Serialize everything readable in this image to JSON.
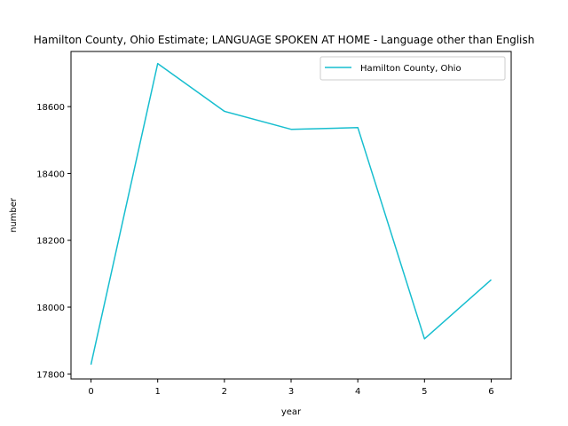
{
  "chart_data": {
    "type": "line",
    "title": "Hamilton County, Ohio Estimate; LANGUAGE SPOKEN AT HOME - Language other than English",
    "xlabel": "year",
    "ylabel": "number",
    "x": [
      0,
      1,
      2,
      3,
      4,
      5,
      6
    ],
    "xlim": [
      -0.3,
      6.3
    ],
    "ylim": [
      17785,
      18765
    ],
    "xticks": [
      0,
      1,
      2,
      3,
      4,
      5,
      6
    ],
    "yticks": [
      17800,
      18000,
      18200,
      18400,
      18600
    ],
    "grid": false,
    "legend_position": "top-right",
    "series": [
      {
        "name": "Hamilton County, Ohio",
        "color": "#17becf",
        "values": [
          17828,
          18729,
          18586,
          18532,
          18537,
          17905,
          18082
        ]
      }
    ]
  }
}
